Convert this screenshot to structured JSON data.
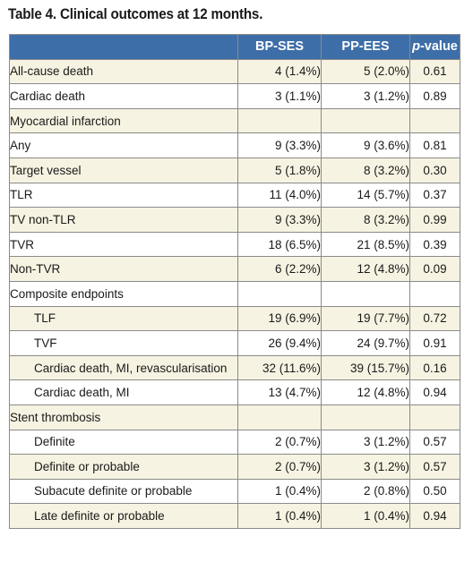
{
  "caption": "Table 4. Clinical outcomes at 12 months.",
  "header": {
    "col1": "",
    "col2": "BP-SES",
    "col3": "PP-EES",
    "col4_italic": "p",
    "col4_rest": "-value"
  },
  "rows": [
    {
      "label": "All-cause death",
      "bp": "4 (1.4%)",
      "pp": "5 (2.0%)",
      "p": "0.61",
      "indent": false
    },
    {
      "label": "Cardiac death",
      "bp": "3 (1.1%)",
      "pp": "3 (1.2%)",
      "p": "0.89",
      "indent": false
    },
    {
      "label": "Myocardial infarction",
      "bp": "",
      "pp": "",
      "p": "",
      "indent": false
    },
    {
      "label": "Any",
      "bp": "9 (3.3%)",
      "pp": "9 (3.6%)",
      "p": "0.81",
      "indent": false
    },
    {
      "label": "Target vessel",
      "bp": "5 (1.8%)",
      "pp": "8 (3.2%)",
      "p": "0.30",
      "indent": false
    },
    {
      "label": "TLR",
      "bp": "11 (4.0%)",
      "pp": "14 (5.7%)",
      "p": "0.37",
      "indent": false
    },
    {
      "label": "TV non-TLR",
      "bp": "9 (3.3%)",
      "pp": "8 (3.2%)",
      "p": "0.99",
      "indent": false
    },
    {
      "label": "TVR",
      "bp": "18 (6.5%)",
      "pp": "21 (8.5%)",
      "p": "0.39",
      "indent": false
    },
    {
      "label": "Non-TVR",
      "bp": "6 (2.2%)",
      "pp": "12 (4.8%)",
      "p": "0.09",
      "indent": false
    },
    {
      "label": "Composite endpoints",
      "bp": "",
      "pp": "",
      "p": "",
      "indent": false
    },
    {
      "label": "TLF",
      "bp": "19 (6.9%)",
      "pp": "19 (7.7%)",
      "p": "0.72",
      "indent": true
    },
    {
      "label": "TVF",
      "bp": "26 (9.4%)",
      "pp": "24 (9.7%)",
      "p": "0.91",
      "indent": true
    },
    {
      "label": "Cardiac death, MI, revascularisation",
      "bp": "32 (11.6%)",
      "pp": "39 (15.7%)",
      "p": "0.16",
      "indent": true
    },
    {
      "label": "Cardiac death, MI",
      "bp": "13 (4.7%)",
      "pp": "12 (4.8%)",
      "p": "0.94",
      "indent": true
    },
    {
      "label": "Stent thrombosis",
      "bp": "",
      "pp": "",
      "p": "",
      "indent": false
    },
    {
      "label": "Definite",
      "bp": "2 (0.7%)",
      "pp": "3 (1.2%)",
      "p": "0.57",
      "indent": true
    },
    {
      "label": "Definite or probable",
      "bp": "2 (0.7%)",
      "pp": "3 (1.2%)",
      "p": "0.57",
      "indent": true
    },
    {
      "label": "Subacute definite or probable",
      "bp": "1 (0.4%)",
      "pp": "2 (0.8%)",
      "p": "0.50",
      "indent": true
    },
    {
      "label": "Late definite or probable",
      "bp": "1 (0.4%)",
      "pp": "1 (0.4%)",
      "p": "0.94",
      "indent": true
    }
  ],
  "colors": {
    "header_bg": "#3d6ea8",
    "header_text": "#ffffff",
    "stripe": "#f6f3e2",
    "border": "#8a8a8a"
  }
}
